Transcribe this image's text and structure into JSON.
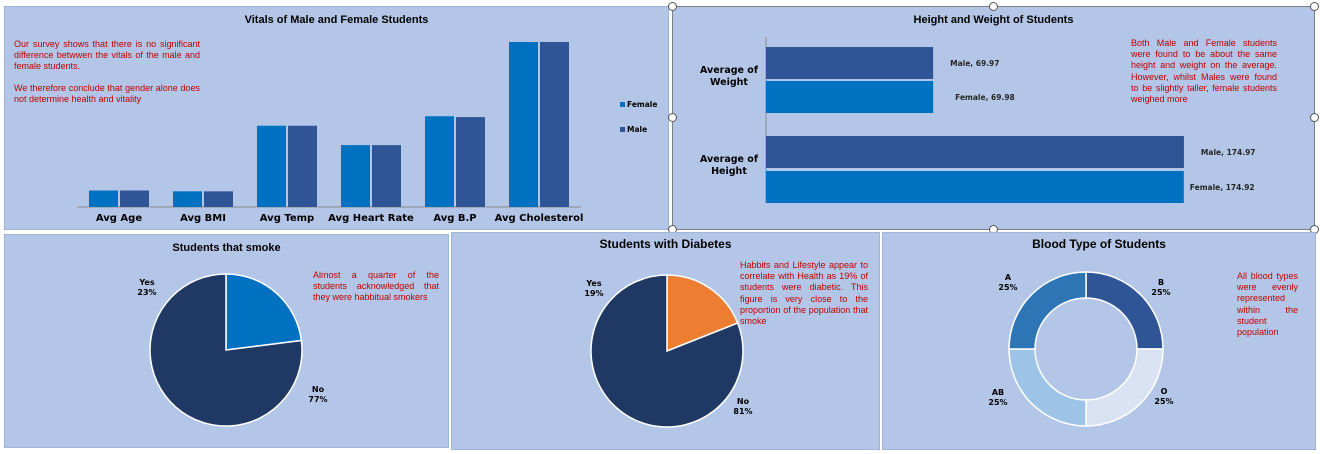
{
  "colors": {
    "panel_bg": "#b4c6e7",
    "female": "#0070c0",
    "male": "#2f5597",
    "dark_navy": "#203864",
    "orange": "#ed7d31",
    "note_red": "#c00000",
    "blood_b": "#2f5597",
    "blood_o": "#dae3f3",
    "blood_ab": "#9dc3e6",
    "blood_a": "#2e75b6"
  },
  "vitals": {
    "title": "Vitals of Male and Female Students",
    "note_p1": "Our survey shows that there is no significant difference betwwen the vitals of the male and female students.",
    "note_p2": "We therefore conclude that gender alone does not determine health and vitality"
  },
  "height_weight": {
    "title": "Height and Weight of Students",
    "note": "Both Male and Female students were found to be about the same height and weight on the average. However, whilst Males were found to be slightly taller, female students weighed more"
  },
  "smoke": {
    "title": "Students that smoke",
    "note": "Almost a quarter of the students acknowledged that they were habbitual smokers"
  },
  "diabetes": {
    "title": "Students with Diabetes",
    "note": "Habbits and Lifestyle appear to correlate with Health as 19% of students were diabetic. This figure is very close to the proportion of the population that smoke"
  },
  "blood": {
    "title": "Blood Type of Students",
    "note": "All blood types were evenly represented within the student population"
  },
  "chart_data": [
    {
      "type": "bar",
      "title": "Vitals of Male and Female Students",
      "categories": [
        "Avg Age",
        "Avg BMI",
        "Avg Temp",
        "Avg Heart Rate",
        "Avg B.P",
        "Avg Cholesterol"
      ],
      "series": [
        {
          "name": "Female",
          "values": [
            20,
            19,
            98.5,
            75,
            110,
            200
          ]
        },
        {
          "name": "Male",
          "values": [
            20,
            19,
            98.5,
            75,
            109,
            200
          ]
        }
      ],
      "ylim": [
        0,
        200
      ],
      "legend": "right"
    },
    {
      "type": "bar",
      "orientation": "horizontal",
      "title": "Height and Weight of Students",
      "categories": [
        "Average of Height",
        "Average of Weight"
      ],
      "series": [
        {
          "name": "Female",
          "values": [
            174.92,
            69.98
          ],
          "labels": [
            "Female, 174.92",
            "Female, 69.98"
          ]
        },
        {
          "name": "Male",
          "values": [
            174.97,
            69.97
          ],
          "labels": [
            "Male, 174.97",
            "Male, 69.97"
          ]
        }
      ],
      "xlim": [
        0,
        175
      ]
    },
    {
      "type": "pie",
      "title": "Students that smoke",
      "slices": [
        {
          "label": "Yes",
          "value": 23,
          "pct": "23%"
        },
        {
          "label": "No",
          "value": 77,
          "pct": "77%"
        }
      ]
    },
    {
      "type": "pie",
      "title": "Students with Diabetes",
      "slices": [
        {
          "label": "Yes",
          "value": 19,
          "pct": "19%"
        },
        {
          "label": "No",
          "value": 81,
          "pct": "81%"
        }
      ]
    },
    {
      "type": "pie",
      "subtype": "donut",
      "title": "Blood Type of Students",
      "slices": [
        {
          "label": "B",
          "value": 25,
          "pct": "25%"
        },
        {
          "label": "O",
          "value": 25,
          "pct": "25%"
        },
        {
          "label": "AB",
          "value": 25,
          "pct": "25%"
        },
        {
          "label": "A",
          "value": 25,
          "pct": "25%"
        }
      ]
    }
  ]
}
